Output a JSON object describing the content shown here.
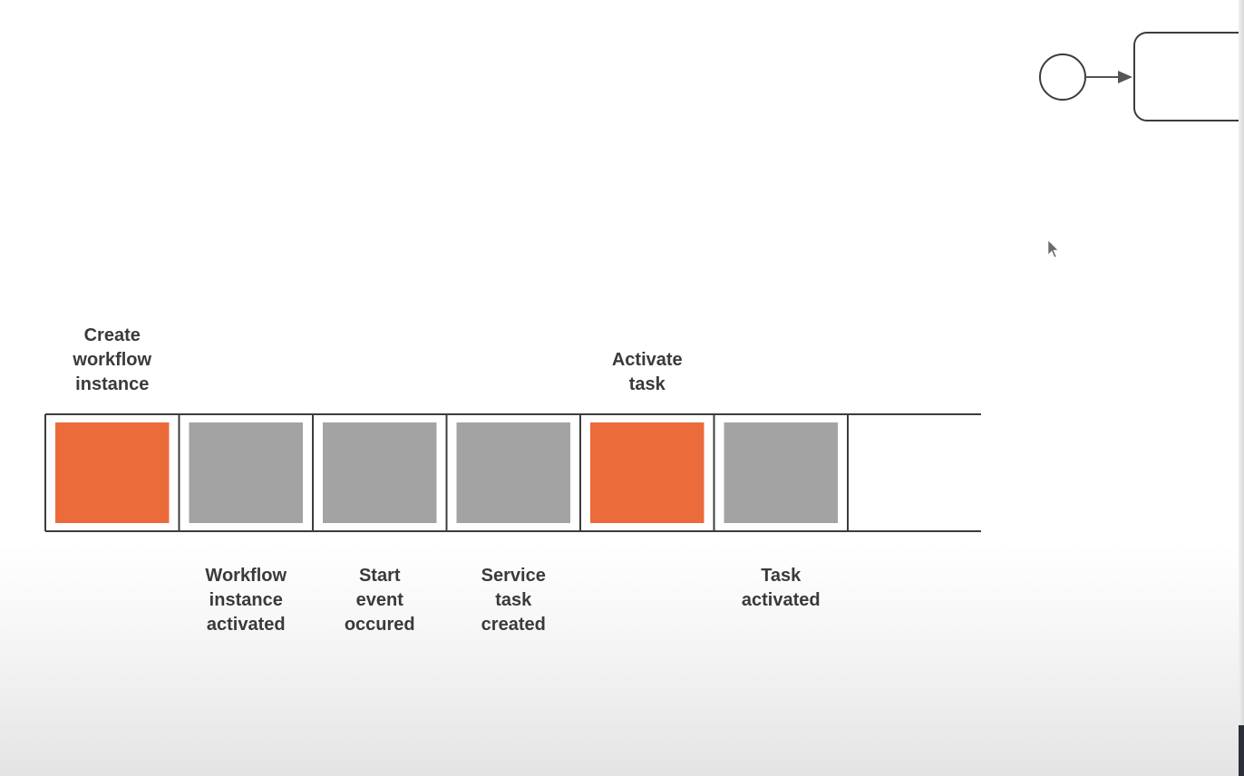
{
  "colors": {
    "command": "#eb6b3b",
    "event": "#a3a3a3",
    "outline": "#3c3c3c",
    "label": "#3a3a3a"
  },
  "log": {
    "cells": [
      {
        "kind": "command",
        "top_label": "Create\nworkflow\ninstance",
        "bottom_label": ""
      },
      {
        "kind": "event",
        "top_label": "",
        "bottom_label": "Workflow\ninstance\nactivated"
      },
      {
        "kind": "event",
        "top_label": "",
        "bottom_label": "Start\nevent\noccured"
      },
      {
        "kind": "event",
        "top_label": "",
        "bottom_label": "Service\ntask\ncreated"
      },
      {
        "kind": "command",
        "top_label": "Activate\ntask",
        "bottom_label": ""
      },
      {
        "kind": "event",
        "top_label": "",
        "bottom_label": "Task\nactivated"
      },
      {
        "kind": "empty",
        "top_label": "",
        "bottom_label": ""
      }
    ]
  },
  "process": {
    "elements": [
      "start-event",
      "sequence-flow",
      "task"
    ]
  },
  "icons": [
    "mouse-cursor-icon"
  ]
}
